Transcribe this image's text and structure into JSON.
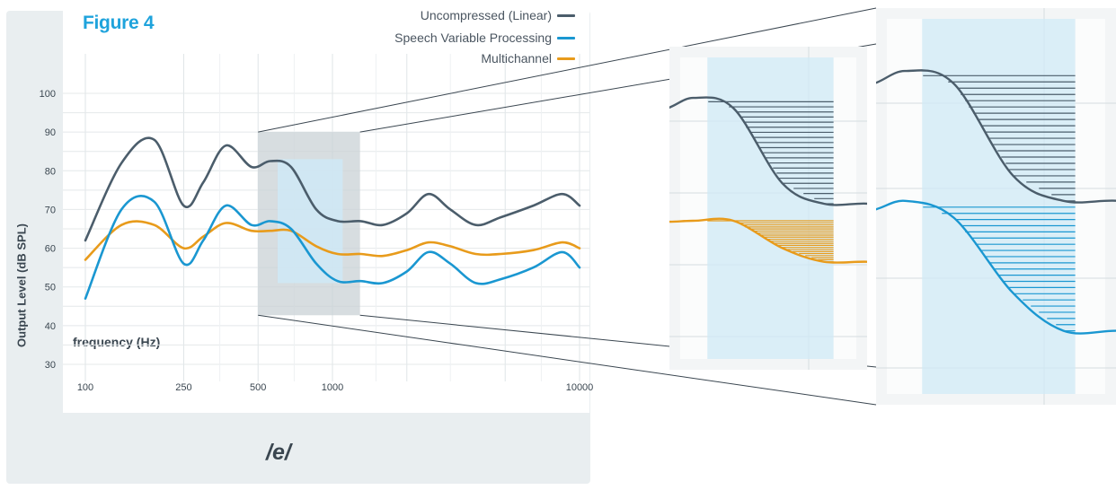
{
  "figure_label": "Figure 4",
  "caption": "/e/",
  "colors": {
    "uncompressed": "#4b5d6b",
    "speech_variable": "#1a97d1",
    "multichannel": "#e89b1b",
    "highlight": "#cfe9f6",
    "zoom_box": "#c9d1d5"
  },
  "chart_data": {
    "type": "line",
    "xlabel": "frequency (Hz)",
    "ylabel": "Output Level (dB SPL)",
    "x_scale": "log",
    "xlim": [
      100,
      10000
    ],
    "ylim": [
      30,
      100
    ],
    "x_ticks": [
      "100",
      "250",
      "500",
      "1000",
      "10000"
    ],
    "y_ticks": [
      100,
      90,
      80,
      70,
      60,
      50,
      40,
      30
    ],
    "grid": true,
    "legend_position": "top-right",
    "series": [
      {
        "name": "Uncompressed (Linear)",
        "x": [
          100,
          140,
          190,
          250,
          300,
          370,
          470,
          560,
          680,
          860,
          1050,
          1300,
          1600,
          2000,
          2450,
          3000,
          3800,
          4800,
          6500,
          8500,
          10000
        ],
        "values": [
          62,
          82,
          88,
          71,
          77,
          86.5,
          81,
          82.5,
          81,
          70,
          67,
          67,
          66,
          69,
          74,
          70,
          66,
          68,
          71,
          74,
          71
        ]
      },
      {
        "name": "Speech Variable Processing",
        "x": [
          100,
          140,
          190,
          250,
          300,
          370,
          470,
          560,
          680,
          860,
          1050,
          1300,
          1600,
          2000,
          2450,
          3000,
          3800,
          4800,
          6500,
          8500,
          10000
        ],
        "values": [
          47,
          70,
          72,
          56,
          62,
          71,
          66,
          67,
          65,
          56,
          51.5,
          51.5,
          51,
          54,
          59,
          56,
          51,
          52,
          55,
          59,
          55
        ]
      },
      {
        "name": "Multichannel",
        "x": [
          100,
          140,
          190,
          250,
          300,
          370,
          470,
          560,
          680,
          860,
          1050,
          1300,
          1600,
          2000,
          2450,
          3000,
          3800,
          4800,
          6500,
          8500,
          10000
        ],
        "values": [
          57,
          66,
          66,
          60,
          63,
          66.5,
          64.5,
          64.5,
          64.5,
          60.5,
          58.5,
          58.5,
          58,
          59.5,
          61.5,
          60.5,
          58.5,
          58.5,
          59.5,
          61.5,
          60
        ]
      }
    ],
    "zoom_region": {
      "x": [
        500,
        1250
      ],
      "y": [
        45,
        90
      ]
    },
    "highlight_band": {
      "x": [
        600,
        1100
      ],
      "y": [
        51,
        83
      ]
    }
  }
}
